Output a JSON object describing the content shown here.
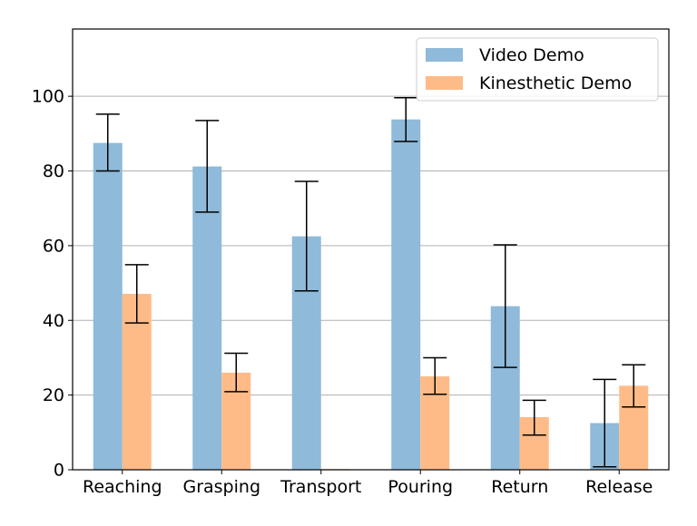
{
  "chart_data": {
    "type": "bar",
    "title": "",
    "xlabel": "",
    "ylabel": "",
    "categories": [
      "Reaching",
      "Grasping",
      "Transport",
      "Pouring",
      "Return",
      "Release"
    ],
    "ylim": [
      0,
      118
    ],
    "yticks": [
      0,
      20,
      40,
      60,
      80,
      100
    ],
    "grid": "horizontal",
    "legend_position": "top-right",
    "series": [
      {
        "name": "Video Demo",
        "color": "#8fbad9",
        "values": [
          87.5,
          81.2,
          62.5,
          93.8,
          43.8,
          12.5
        ],
        "err_low": [
          80.0,
          69.0,
          47.9,
          87.9,
          27.4,
          0.8
        ],
        "err_high": [
          95.2,
          93.5,
          77.2,
          99.6,
          60.2,
          24.2
        ]
      },
      {
        "name": "Kinesthetic Demo",
        "color": "#ffbb87",
        "values": [
          47.1,
          26.0,
          0.2,
          25.0,
          14.1,
          22.5
        ],
        "err_low": [
          39.3,
          20.9,
          null,
          20.2,
          9.3,
          16.8
        ],
        "err_high": [
          54.9,
          31.2,
          null,
          30.0,
          18.6,
          28.1
        ]
      }
    ]
  }
}
